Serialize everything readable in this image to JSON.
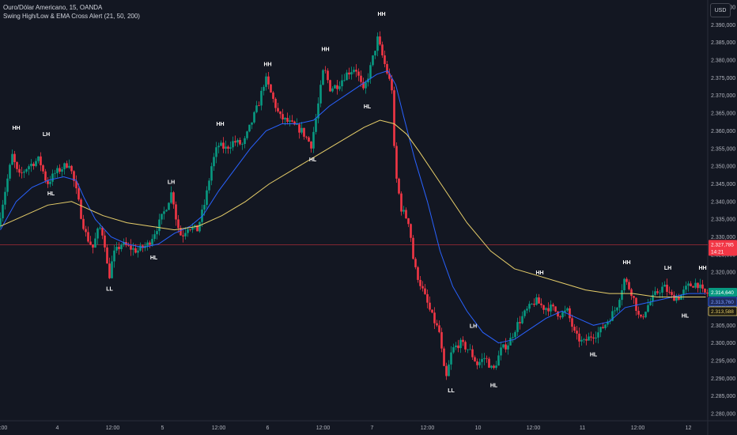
{
  "legend": {
    "symbol_line": "Ouro/Dólar Americano, 15, OANDA",
    "indicator_line": "Swing High/Low & EMA Cross Alert (21, 50, 200)"
  },
  "currency_button": "USD",
  "chart_data": {
    "type": "candlestick",
    "y_axis": {
      "range": [
        2.278,
        2.397
      ],
      "ticks": [
        "2.280,000",
        "2.285,000",
        "2.290,000",
        "2.295,000",
        "2.300,000",
        "2.305,000",
        "2.310,000",
        "2.315,000",
        "2.320,000",
        "2.325,000",
        "2.330,000",
        "2.335,000",
        "2.340,000",
        "2.345,000",
        "2.350,000",
        "2.355,000",
        "2.360,000",
        "2.365,000",
        "2.370,000",
        "2.375,000",
        "2.380,000",
        "2.385,000",
        "2.390,000",
        "2.395,000"
      ],
      "tick_values": [
        2280,
        2285,
        2290,
        2295,
        2300,
        2305,
        2310,
        2315,
        2320,
        2325,
        2330,
        2335,
        2340,
        2345,
        2350,
        2355,
        2360,
        2365,
        2370,
        2375,
        2380,
        2385,
        2390,
        2395
      ]
    },
    "x_axis": {
      "labels": [
        "12:00",
        "4",
        "12:00",
        "5",
        "12:00",
        "6",
        "12:00",
        "7",
        "12:00",
        "10",
        "12:00",
        "11",
        "12:00",
        "12"
      ],
      "label_bars": [
        0,
        72,
        142,
        205,
        276,
        338,
        408,
        470,
        540,
        604,
        674,
        736,
        806,
        870
      ]
    },
    "price_path": [
      [
        0,
        2333
      ],
      [
        8,
        2342
      ],
      [
        18,
        2353
      ],
      [
        26,
        2347
      ],
      [
        38,
        2350
      ],
      [
        52,
        2352
      ],
      [
        62,
        2345
      ],
      [
        72,
        2348
      ],
      [
        90,
        2351
      ],
      [
        100,
        2342
      ],
      [
        106,
        2335
      ],
      [
        112,
        2330
      ],
      [
        120,
        2327
      ],
      [
        128,
        2333
      ],
      [
        134,
        2330
      ],
      [
        140,
        2318
      ],
      [
        146,
        2325
      ],
      [
        156,
        2328
      ],
      [
        166,
        2327
      ],
      [
        176,
        2326
      ],
      [
        190,
        2328
      ],
      [
        202,
        2333
      ],
      [
        212,
        2338
      ],
      [
        220,
        2343
      ],
      [
        226,
        2334
      ],
      [
        232,
        2330
      ],
      [
        240,
        2333
      ],
      [
        252,
        2332
      ],
      [
        262,
        2340
      ],
      [
        270,
        2350
      ],
      [
        278,
        2356
      ],
      [
        288,
        2355
      ],
      [
        298,
        2357
      ],
      [
        310,
        2356
      ],
      [
        320,
        2362
      ],
      [
        330,
        2368
      ],
      [
        338,
        2375
      ],
      [
        346,
        2370
      ],
      [
        356,
        2364
      ],
      [
        370,
        2362
      ],
      [
        384,
        2360
      ],
      [
        396,
        2356
      ],
      [
        404,
        2366
      ],
      [
        412,
        2378
      ],
      [
        420,
        2372
      ],
      [
        430,
        2373
      ],
      [
        440,
        2376
      ],
      [
        452,
        2378
      ],
      [
        462,
        2371
      ],
      [
        470,
        2377
      ],
      [
        480,
        2386
      ],
      [
        490,
        2378
      ],
      [
        498,
        2372
      ],
      [
        502,
        2349
      ],
      [
        510,
        2338
      ],
      [
        520,
        2334
      ],
      [
        526,
        2322
      ],
      [
        532,
        2318
      ],
      [
        540,
        2313
      ],
      [
        548,
        2308
      ],
      [
        558,
        2303
      ],
      [
        566,
        2289
      ],
      [
        574,
        2298
      ],
      [
        584,
        2300
      ],
      [
        596,
        2298
      ],
      [
        606,
        2294
      ],
      [
        616,
        2296
      ],
      [
        626,
        2292
      ],
      [
        636,
        2298
      ],
      [
        646,
        2300
      ],
      [
        656,
        2305
      ],
      [
        668,
        2309
      ],
      [
        680,
        2312
      ],
      [
        690,
        2310
      ],
      [
        700,
        2310
      ],
      [
        710,
        2308
      ],
      [
        720,
        2309
      ],
      [
        730,
        2302
      ],
      [
        740,
        2300
      ],
      [
        750,
        2302
      ],
      [
        760,
        2303
      ],
      [
        770,
        2306
      ],
      [
        782,
        2310
      ],
      [
        792,
        2318
      ],
      [
        802,
        2314
      ],
      [
        812,
        2306
      ],
      [
        820,
        2310
      ],
      [
        832,
        2314
      ],
      [
        842,
        2316
      ],
      [
        852,
        2313
      ],
      [
        862,
        2313
      ],
      [
        872,
        2316
      ],
      [
        884,
        2317
      ],
      [
        892,
        2314
      ]
    ],
    "series": [
      {
        "name": "EMA 50",
        "color": "#2962ff",
        "values": [
          [
            0,
            2332
          ],
          [
            20,
            2340
          ],
          [
            40,
            2344
          ],
          [
            60,
            2346
          ],
          [
            80,
            2347
          ],
          [
            96,
            2346
          ],
          [
            106,
            2341
          ],
          [
            120,
            2335
          ],
          [
            140,
            2330
          ],
          [
            160,
            2328
          ],
          [
            180,
            2327
          ],
          [
            200,
            2328
          ],
          [
            220,
            2331
          ],
          [
            240,
            2333
          ],
          [
            256,
            2336
          ],
          [
            276,
            2343
          ],
          [
            296,
            2349
          ],
          [
            316,
            2355
          ],
          [
            336,
            2360
          ],
          [
            356,
            2362
          ],
          [
            376,
            2362
          ],
          [
            396,
            2363
          ],
          [
            416,
            2367
          ],
          [
            436,
            2370
          ],
          [
            456,
            2373
          ],
          [
            476,
            2376
          ],
          [
            490,
            2377
          ],
          [
            500,
            2373
          ],
          [
            510,
            2364
          ],
          [
            524,
            2352
          ],
          [
            540,
            2340
          ],
          [
            556,
            2326
          ],
          [
            572,
            2316
          ],
          [
            590,
            2309
          ],
          [
            610,
            2303
          ],
          [
            630,
            2300
          ],
          [
            650,
            2301
          ],
          [
            670,
            2304
          ],
          [
            690,
            2307
          ],
          [
            710,
            2309
          ],
          [
            730,
            2307
          ],
          [
            750,
            2305
          ],
          [
            770,
            2306
          ],
          [
            790,
            2310
          ],
          [
            810,
            2311
          ],
          [
            830,
            2312
          ],
          [
            850,
            2313
          ],
          [
            870,
            2314
          ],
          [
            892,
            2314
          ]
        ]
      },
      {
        "name": "EMA 200",
        "color": "#e8cf6a",
        "values": [
          [
            0,
            2333
          ],
          [
            30,
            2336
          ],
          [
            60,
            2339
          ],
          [
            90,
            2340
          ],
          [
            110,
            2338
          ],
          [
            130,
            2336
          ],
          [
            160,
            2334
          ],
          [
            190,
            2333
          ],
          [
            220,
            2332
          ],
          [
            250,
            2333
          ],
          [
            280,
            2336
          ],
          [
            310,
            2340
          ],
          [
            340,
            2345
          ],
          [
            370,
            2349
          ],
          [
            400,
            2353
          ],
          [
            430,
            2357
          ],
          [
            460,
            2361
          ],
          [
            480,
            2363
          ],
          [
            498,
            2362
          ],
          [
            514,
            2359
          ],
          [
            530,
            2354
          ],
          [
            560,
            2344
          ],
          [
            590,
            2334
          ],
          [
            620,
            2326
          ],
          [
            650,
            2321
          ],
          [
            680,
            2319
          ],
          [
            710,
            2317
          ],
          [
            740,
            2315
          ],
          [
            770,
            2314
          ],
          [
            800,
            2314
          ],
          [
            830,
            2313
          ],
          [
            860,
            2313
          ],
          [
            892,
            2313
          ]
        ]
      }
    ],
    "swing_labels": [
      {
        "text": "HH",
        "bar": 20,
        "y": 2360.3
      },
      {
        "text": "LH",
        "bar": 58,
        "y": 2358.5
      },
      {
        "text": "HL",
        "bar": 64,
        "y": 2341.7
      },
      {
        "text": "LL",
        "bar": 138,
        "y": 2314.8
      },
      {
        "text": "HL",
        "bar": 194,
        "y": 2323.6
      },
      {
        "text": "LH",
        "bar": 216,
        "y": 2345.0
      },
      {
        "text": "HH",
        "bar": 278,
        "y": 2361.4
      },
      {
        "text": "HH",
        "bar": 338,
        "y": 2378.3
      },
      {
        "text": "HL",
        "bar": 395,
        "y": 2351.4
      },
      {
        "text": "HH",
        "bar": 411,
        "y": 2382.6
      },
      {
        "text": "HL",
        "bar": 464,
        "y": 2366.4
      },
      {
        "text": "HH",
        "bar": 482,
        "y": 2392.5
      },
      {
        "text": "HH",
        "bar": 682,
        "y": 2319.4
      },
      {
        "text": "LL",
        "bar": 570,
        "y": 2286.0
      },
      {
        "text": "LH",
        "bar": 598,
        "y": 2304.3
      },
      {
        "text": "HL",
        "bar": 624,
        "y": 2287.5
      },
      {
        "text": "HL",
        "bar": 750,
        "y": 2296.2
      },
      {
        "text": "HH",
        "bar": 792,
        "y": 2322.3
      },
      {
        "text": "LH",
        "bar": 844,
        "y": 2320.7
      },
      {
        "text": "HL",
        "bar": 866,
        "y": 2307.2
      },
      {
        "text": "HH",
        "bar": 888,
        "y": 2320.7
      }
    ],
    "current_price": {
      "value": 2327.785,
      "label": "2.327,785",
      "countdown": "14:21",
      "color": "#f23645"
    },
    "price_badges": [
      {
        "label": "2.314,640",
        "value": 2314.64,
        "bg": "#089981",
        "fg": "#ffffff"
      },
      {
        "label": "2.313,760",
        "value": 2313.76,
        "bg": "#1e2a5a",
        "fg": "#7b9cff",
        "border": "#2962ff"
      },
      {
        "label": "2.313,588",
        "value": 2313.588,
        "bg": "#1c1a10",
        "fg": "#e8cf6a",
        "border": "#e8cf6a"
      }
    ],
    "colors": {
      "up": "#089981",
      "down": "#f23645",
      "background": "#131722"
    }
  }
}
